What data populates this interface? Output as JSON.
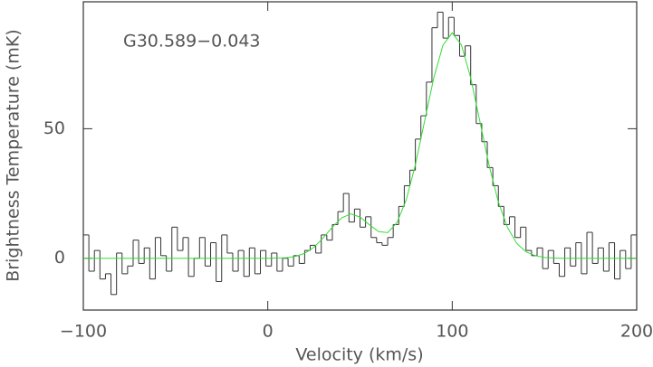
{
  "chart_data": {
    "type": "spectrum",
    "title": "G30.589−0.043",
    "x_label": "Velocity (km/s)",
    "y_label": "Brightness Temperature (mK)",
    "xlim": [
      -100,
      200
    ],
    "ylim": [
      -20,
      99
    ],
    "xticks": [
      {
        "value": -100,
        "label": "−100"
      },
      0,
      100,
      200
    ],
    "yticks": [
      0,
      50
    ],
    "series": [
      {
        "style": "step",
        "color": "#333333",
        "width": 3,
        "x": [
          -98.5,
          -95.5,
          -92.5,
          -89.5,
          -86.5,
          -83.5,
          -80.5,
          -77.5,
          -74.5,
          -71.5,
          -68.5,
          -65.5,
          -62.5,
          -59.5,
          -56.5,
          -53.5,
          -50.5,
          -47.5,
          -44.5,
          -41.5,
          -38.5,
          -35.5,
          -32.5,
          -29.5,
          -26.5,
          -23.5,
          -20.5,
          -17.5,
          -14.5,
          -11.5,
          -8.5,
          -5.5,
          -2.5,
          0.5,
          3.5,
          6.5,
          9.5,
          12.5,
          15.5,
          18.5,
          21.5,
          24.5,
          27.5,
          30.5,
          33.5,
          36.5,
          39.5,
          42.5,
          45.5,
          48.5,
          51.5,
          54.5,
          57.5,
          60.5,
          63.5,
          66.5,
          69.5,
          72.5,
          75.5,
          78.5,
          81.5,
          84.5,
          87.5,
          90.5,
          93.5,
          96.5,
          99.5,
          102.5,
          105.5,
          108.5,
          111.5,
          114.5,
          117.5,
          120.5,
          123.5,
          126.5,
          129.5,
          132.5,
          135.5,
          138.5,
          141.5,
          144.5,
          147.5,
          150.5,
          153.5,
          156.5,
          159.5,
          162.5,
          165.5,
          168.5,
          171.5,
          174.5,
          177.5,
          180.5,
          183.5,
          186.5,
          189.5,
          192.5,
          195.5,
          198.5
        ],
        "values": [
          9,
          -5,
          3,
          -8,
          -6,
          -14,
          2,
          -6,
          -3,
          7,
          -2,
          4,
          -8,
          8,
          1,
          -5,
          12,
          3,
          8,
          -7,
          0,
          8,
          -3,
          6,
          -9,
          9,
          2,
          -5,
          3,
          -7,
          4,
          -6,
          3,
          -3,
          2,
          -5,
          0,
          -3,
          1,
          -2,
          3,
          5,
          2,
          9,
          7,
          13,
          18,
          25,
          14,
          19,
          12,
          16,
          8,
          6,
          5,
          8,
          13,
          20,
          28,
          34,
          46,
          55,
          68,
          89,
          95,
          85,
          93,
          86,
          78,
          82,
          67,
          52,
          45,
          35,
          28,
          20,
          13,
          16,
          8,
          12,
          3,
          1,
          4,
          -4,
          3,
          -2,
          -7,
          4,
          -3,
          6,
          -6,
          10,
          -2,
          4,
          -5,
          6,
          -8,
          3,
          -4,
          9
        ]
      },
      {
        "style": "line",
        "color": "#33dd33",
        "x": [
          -100,
          -95,
          -90,
          -85,
          -80,
          -75,
          -70,
          -65,
          -60,
          -55,
          -50,
          -45,
          -40,
          -35,
          -30,
          -25,
          -20,
          -15,
          -10,
          -5,
          0,
          5,
          10,
          15,
          20,
          25,
          30,
          35,
          40,
          45,
          50,
          55,
          60,
          65,
          70,
          75,
          80,
          85,
          90,
          95,
          100,
          105,
          110,
          115,
          120,
          125,
          130,
          135,
          140,
          145,
          150,
          155,
          160,
          165,
          170,
          175,
          180,
          185,
          190,
          195,
          200
        ],
        "values": [
          0,
          0,
          0,
          0,
          0,
          0,
          0,
          0,
          0,
          0,
          0,
          0,
          0,
          0,
          0,
          0,
          0,
          0,
          0,
          0,
          0,
          0.1,
          0.2,
          0.7,
          1.9,
          4.2,
          7.8,
          12.0,
          15.6,
          17.1,
          15.9,
          13.0,
          10.3,
          9.9,
          13.7,
          22.4,
          36.0,
          52.9,
          69.7,
          82.3,
          87,
          82.3,
          69.7,
          52.8,
          35.8,
          21.7,
          11.8,
          5.7,
          2.5,
          1.0,
          0.3,
          0.1,
          0,
          0,
          0,
          0,
          0,
          0,
          0,
          0,
          0
        ]
      }
    ]
  }
}
